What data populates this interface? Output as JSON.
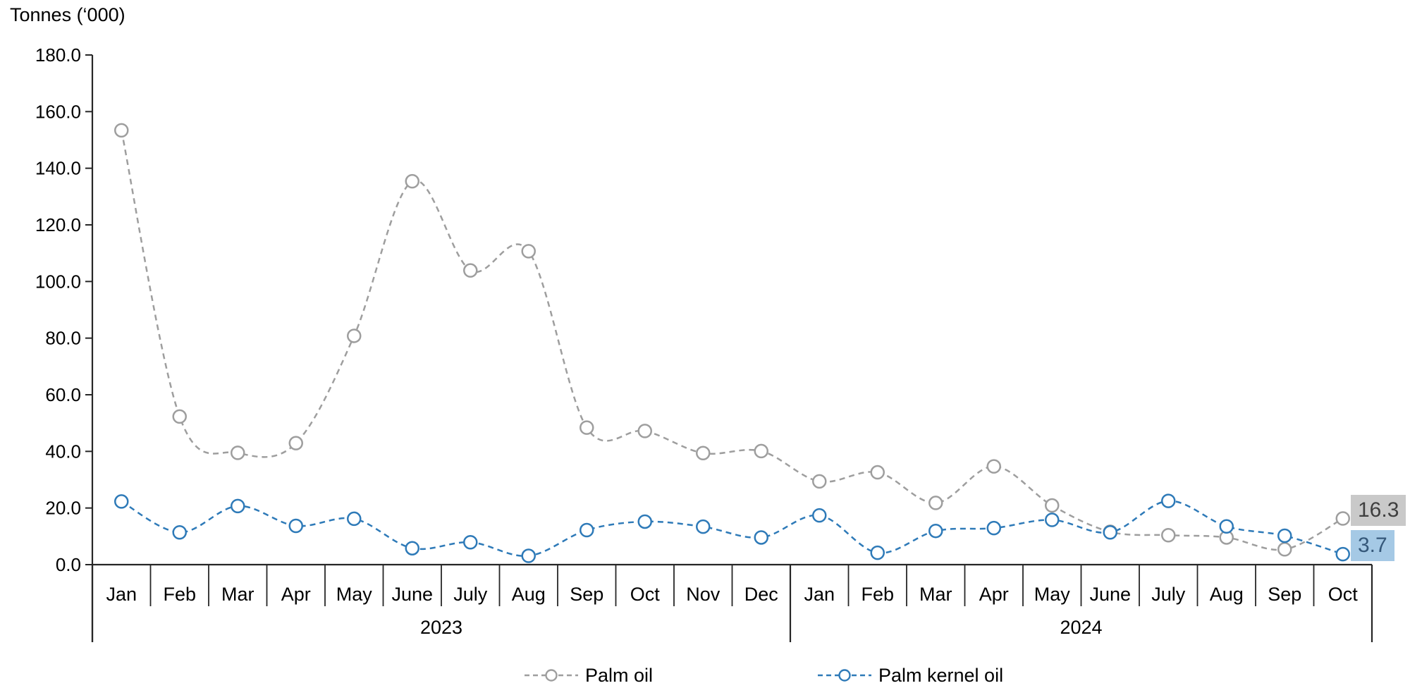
{
  "chart": {
    "y_axis_title": "Tonnes (‘000)",
    "axis_color": "#262626",
    "end_labels": {
      "palm_oil": {
        "text": "16.3",
        "bg": "#c9c9c9",
        "fg": "#3f3f3f"
      },
      "palm_kernel_oil": {
        "text": "3.7",
        "bg": "#a5c9e5",
        "fg": "#35587a"
      }
    }
  },
  "chart_data": {
    "type": "line",
    "title": "",
    "ylabel": "Tonnes ('000)",
    "xlabel": "",
    "ylim": [
      0,
      180
    ],
    "ytick_step": 20,
    "grid": false,
    "line_style": "dashed",
    "marker": "circle",
    "legend_position": "bottom",
    "categories": [
      "Jan",
      "Feb",
      "Mar",
      "Apr",
      "May",
      "June",
      "July",
      "Aug",
      "Sep",
      "Oct",
      "Nov",
      "Dec",
      "Jan",
      "Feb",
      "Mar",
      "Apr",
      "May",
      "June",
      "July",
      "Aug",
      "Sep",
      "Oct"
    ],
    "year_groups": [
      {
        "label": "2023",
        "span": 12
      },
      {
        "label": "2024",
        "span": 10
      }
    ],
    "series": [
      {
        "name": "Palm oil",
        "color": "#9e9e9e",
        "values": [
          153.4,
          52.3,
          39.5,
          42.9,
          80.8,
          135.4,
          103.9,
          110.7,
          48.4,
          47.2,
          39.4,
          40.1,
          29.4,
          32.6,
          21.8,
          34.7,
          20.9,
          11.6,
          10.4,
          9.6,
          5.4,
          16.3
        ]
      },
      {
        "name": "Palm kernel oil",
        "color": "#2e7ab8",
        "values": [
          22.3,
          11.4,
          20.7,
          13.7,
          16.2,
          5.8,
          7.9,
          3.1,
          12.2,
          15.2,
          13.4,
          9.6,
          17.4,
          4.2,
          11.9,
          12.9,
          15.8,
          11.4,
          22.5,
          13.5,
          10.2,
          3.7
        ]
      }
    ]
  }
}
